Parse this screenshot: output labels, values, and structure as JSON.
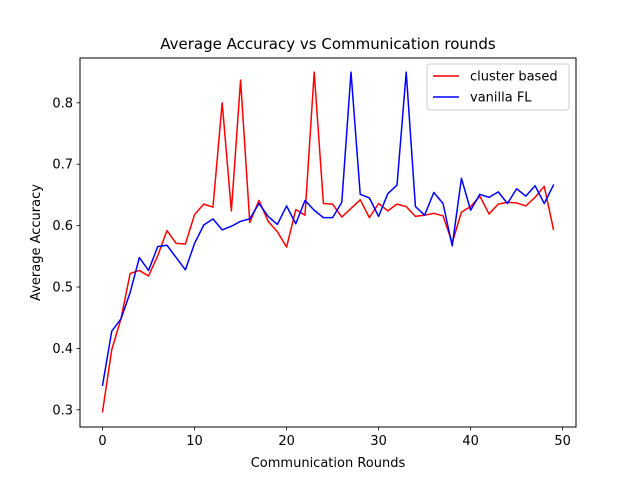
{
  "chart_data": {
    "type": "line",
    "title": "Average Accuracy vs Communication rounds",
    "xlabel": "Communication Rounds",
    "ylabel": "Average Accuracy",
    "xlim": [
      -2.45,
      51.45
    ],
    "ylim": [
      0.272,
      0.873
    ],
    "xticks": [
      0,
      10,
      20,
      30,
      40,
      50
    ],
    "yticks": [
      0.3,
      0.4,
      0.5,
      0.6,
      0.7,
      0.8
    ],
    "grid": false,
    "legend_position": "top-right",
    "x": [
      0,
      1,
      2,
      3,
      4,
      5,
      6,
      7,
      8,
      9,
      10,
      11,
      12,
      13,
      14,
      15,
      16,
      17,
      18,
      19,
      20,
      21,
      22,
      23,
      24,
      25,
      26,
      27,
      28,
      29,
      30,
      31,
      32,
      33,
      34,
      35,
      36,
      37,
      38,
      39,
      40,
      41,
      42,
      43,
      44,
      45,
      46,
      47,
      48,
      49
    ],
    "series": [
      {
        "name": "cluster based",
        "color": "#ff0000",
        "values": [
          0.297,
          0.398,
          0.448,
          0.522,
          0.527,
          0.518,
          0.551,
          0.592,
          0.571,
          0.57,
          0.618,
          0.635,
          0.63,
          0.8,
          0.624,
          0.837,
          0.605,
          0.641,
          0.607,
          0.59,
          0.565,
          0.626,
          0.617,
          0.85,
          0.636,
          0.635,
          0.614,
          0.628,
          0.642,
          0.613,
          0.636,
          0.624,
          0.635,
          0.631,
          0.615,
          0.617,
          0.62,
          0.616,
          0.572,
          0.622,
          0.631,
          0.648,
          0.619,
          0.635,
          0.638,
          0.637,
          0.632,
          0.646,
          0.664,
          0.594
        ]
      },
      {
        "name": "vanilla FL",
        "color": "#0000ff",
        "values": [
          0.34,
          0.428,
          0.448,
          0.491,
          0.548,
          0.527,
          0.566,
          0.568,
          0.548,
          0.528,
          0.571,
          0.601,
          0.611,
          0.593,
          0.599,
          0.607,
          0.611,
          0.636,
          0.615,
          0.602,
          0.632,
          0.603,
          0.641,
          0.625,
          0.613,
          0.613,
          0.638,
          0.85,
          0.651,
          0.645,
          0.615,
          0.652,
          0.666,
          0.85,
          0.631,
          0.617,
          0.654,
          0.636,
          0.567,
          0.677,
          0.625,
          0.651,
          0.646,
          0.655,
          0.636,
          0.66,
          0.648,
          0.665,
          0.636,
          0.666
        ]
      }
    ]
  }
}
